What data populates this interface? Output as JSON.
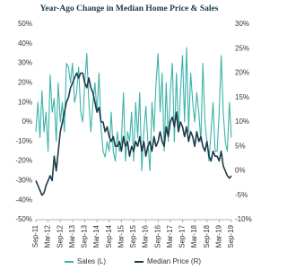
{
  "chart_data": {
    "type": "line",
    "title": "Year-Ago Change in Median Home Price & Sales",
    "categories": [
      "Sep-11",
      null,
      null,
      null,
      null,
      null,
      "Mar-12",
      null,
      null,
      null,
      null,
      null,
      "Sep-12",
      null,
      null,
      null,
      null,
      null,
      "Mar-13",
      null,
      null,
      null,
      null,
      null,
      "Sep-13",
      null,
      null,
      null,
      null,
      null,
      "Mar-14",
      null,
      null,
      null,
      null,
      null,
      "Sep-14",
      null,
      null,
      null,
      null,
      null,
      "Mar-15",
      null,
      null,
      null,
      null,
      null,
      "Sep-15",
      null,
      null,
      null,
      null,
      null,
      "Mar-16",
      null,
      null,
      null,
      null,
      null,
      "Sep-16",
      null,
      null,
      null,
      null,
      null,
      "Mar-17",
      null,
      null,
      null,
      null,
      null,
      "Sep-17",
      null,
      null,
      null,
      null,
      null,
      "Mar-18",
      null,
      null,
      null,
      null,
      null,
      "Sep-18",
      null,
      null,
      null,
      null,
      null,
      "Mar-19",
      null,
      null,
      null,
      null,
      null,
      "Sep-19"
    ],
    "series": [
      {
        "name": "Sales (L)",
        "color": "#3bb3a9",
        "axis": "y",
        "values": [
          -5,
          10,
          -8,
          16,
          -5,
          5,
          -15,
          24,
          5,
          12,
          -10,
          20,
          0,
          10,
          -5,
          30,
          28,
          20,
          30,
          10,
          15,
          28,
          5,
          0,
          20,
          35,
          10,
          -5,
          10,
          20,
          5,
          25,
          -3,
          -15,
          -18,
          -10,
          -15,
          5,
          -15,
          -20,
          -5,
          -15,
          -10,
          15,
          -20,
          -5,
          -10,
          5,
          -20,
          10,
          -8,
          15,
          -25,
          -5,
          8,
          -10,
          -25,
          10,
          -5,
          20,
          35,
          5,
          25,
          -15,
          20,
          -10,
          15,
          30,
          -10,
          25,
          -5,
          15,
          34,
          0,
          38,
          -5,
          25,
          10,
          0,
          15,
          5,
          -10,
          30,
          0,
          -10,
          -20,
          -5,
          10,
          -15,
          -15,
          5,
          34,
          5,
          -10,
          -15,
          10,
          -8
        ]
      },
      {
        "name": "Median Price (R)",
        "color": "#1c3a4a",
        "axis": "y2",
        "values": [
          -2,
          -3,
          -4,
          -5,
          -4.5,
          -3,
          -2,
          -1,
          -2,
          3,
          0,
          4,
          8,
          10,
          12,
          14,
          15,
          17,
          18,
          19,
          20,
          19,
          20,
          20,
          18,
          17,
          19,
          17,
          16,
          14,
          12,
          13,
          10,
          10,
          8,
          9,
          7,
          6,
          7,
          5,
          5,
          6,
          4,
          7,
          5,
          6,
          3,
          5,
          4,
          6,
          5,
          7,
          4,
          6,
          3,
          5,
          6,
          4,
          7,
          5,
          6,
          8,
          6,
          5,
          9,
          7,
          10,
          11,
          9,
          12,
          8,
          10,
          9,
          7,
          9,
          6,
          8,
          7,
          5,
          8,
          6,
          7,
          5,
          4,
          6,
          3,
          2,
          4,
          3,
          3,
          2,
          4,
          1,
          0,
          -1,
          -1.5,
          -1
        ]
      }
    ],
    "ylim": [
      -50,
      50
    ],
    "yticks": [
      {
        "value": -50,
        "label": "-50%"
      },
      {
        "value": -40,
        "label": "-40%"
      },
      {
        "value": -30,
        "label": "-30%"
      },
      {
        "value": -20,
        "label": "-20%"
      },
      {
        "value": -10,
        "label": "-10%"
      },
      {
        "value": 0,
        "label": "0%"
      },
      {
        "value": 10,
        "label": "10%"
      },
      {
        "value": 20,
        "label": "20%"
      },
      {
        "value": 30,
        "label": "30%"
      },
      {
        "value": 40,
        "label": "40%"
      },
      {
        "value": 50,
        "label": "50%"
      }
    ],
    "y2lim": [
      -10,
      30
    ],
    "y2ticks": [
      {
        "value": -10,
        "label": "-10%"
      },
      {
        "value": -5,
        "label": "-5%"
      },
      {
        "value": 0,
        "label": "0%"
      },
      {
        "value": 5,
        "label": "5%"
      },
      {
        "value": 10,
        "label": "10%"
      },
      {
        "value": 15,
        "label": "15%"
      },
      {
        "value": 20,
        "label": "20%"
      },
      {
        "value": 25,
        "label": "25%"
      },
      {
        "value": 30,
        "label": "30%"
      }
    ],
    "grid": false
  }
}
